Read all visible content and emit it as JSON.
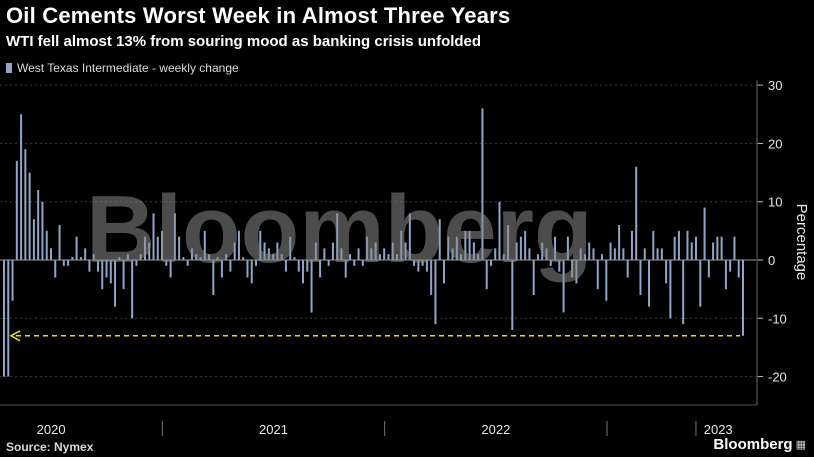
{
  "title": "Oil Cements Worst Week in Almost Three Years",
  "subtitle": "WTI fell almost 13% from souring mood as banking crisis unfolded",
  "source": "Source: Nymex",
  "brand": "Bloomberg",
  "watermark": "Bloomberg",
  "colors": {
    "bar": "#8fa6c9",
    "annotation": "#f2e000",
    "background": "#000000"
  },
  "chart_data": {
    "type": "bar",
    "title": "Oil Cements Worst Week in Almost Three Years",
    "subtitle": "WTI fell almost 13% from souring mood as banking crisis unfolded",
    "ylabel": "Percentage",
    "ylim": [
      -20,
      30
    ],
    "yticks": [
      30,
      20,
      10,
      0,
      -10,
      -20
    ],
    "xlim": [
      2019.77,
      2023.17
    ],
    "year_labels": [
      {
        "label": "2020",
        "x": 2020.0
      },
      {
        "label": "2021",
        "x": 2021.0
      },
      {
        "label": "2022",
        "x": 2022.0
      },
      {
        "label": "2023",
        "x": 2023.0
      }
    ],
    "year_dividers": [
      2020.5,
      2021.5,
      2022.5,
      2022.9
    ],
    "legend": {
      "entries": [
        "West Texas Intermediate - weekly change"
      ],
      "placement": "top-left"
    },
    "reference_line": {
      "y": -13.0,
      "style": "dashed-arrow-left"
    },
    "series": [
      {
        "name": "West Texas Intermediate - weekly change",
        "values": [
          -20,
          -20,
          -7,
          17,
          25,
          19,
          15,
          7,
          12,
          10,
          5,
          2,
          -3,
          6,
          -1,
          -1,
          0.5,
          4,
          0.5,
          2,
          -2,
          1,
          -2,
          -5,
          -3,
          -4,
          -8,
          0.5,
          -5,
          1,
          -10,
          -1,
          1,
          4,
          3,
          8,
          4,
          5,
          -1,
          -3,
          8,
          4,
          0.5,
          -1,
          2,
          1,
          0.5,
          5,
          1,
          -6,
          0.5,
          -3,
          1,
          -2,
          3,
          5,
          0.5,
          -3,
          -4,
          -1,
          5,
          3,
          2,
          1,
          3,
          1,
          -2,
          4,
          0.5,
          -2,
          -4,
          -2,
          -9,
          3,
          -3,
          2,
          -1,
          3,
          8,
          2,
          -3,
          1,
          -1,
          2,
          -1,
          4,
          2,
          3,
          1,
          2,
          1,
          3,
          1,
          5,
          3,
          8,
          -1,
          -2,
          -1,
          -2,
          -6,
          -11,
          7,
          -4,
          4,
          2,
          4,
          1,
          5,
          5,
          3,
          1,
          26,
          -5,
          -1,
          2,
          10,
          1,
          6,
          -12,
          3,
          4,
          5,
          2,
          -6,
          1,
          3,
          2,
          -1,
          4,
          -2,
          -9,
          4,
          -3,
          -4,
          2,
          1,
          3,
          2,
          -5,
          1,
          -7,
          3,
          2,
          6,
          2,
          -3,
          5,
          16,
          -6,
          2,
          -8,
          5,
          2,
          2,
          -4,
          -10,
          4,
          5,
          -11,
          5,
          3,
          4,
          -8,
          9,
          -3,
          3,
          4,
          4,
          -5,
          -2,
          4,
          -3,
          -13
        ]
      }
    ]
  }
}
